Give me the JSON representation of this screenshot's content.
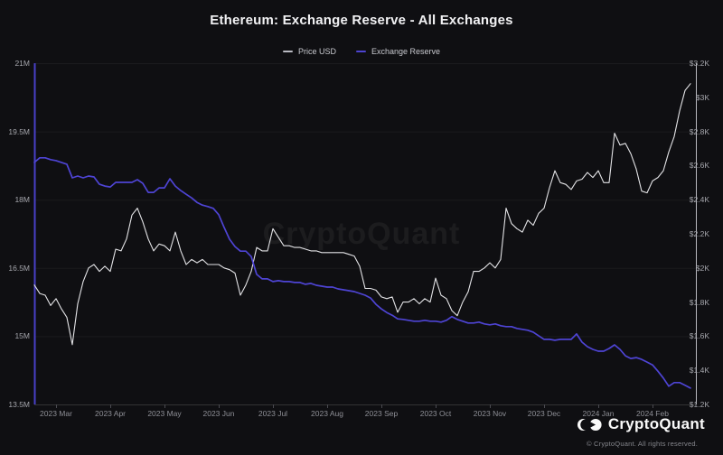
{
  "header": {
    "title": "Ethereum: Exchange Reserve - All Exchanges"
  },
  "legend": [
    {
      "label": "Price USD",
      "color": "#b9bac2"
    },
    {
      "label": "Exchange Reserve",
      "color": "#4d44d0"
    }
  ],
  "watermark": "CryptoQuant",
  "footer": {
    "brand": "CryptoQuant",
    "copyright": "© CryptoQuant. All rights reserved.",
    "logo_icon": "cryptoquant-logo-icon"
  },
  "colors": {
    "background": "#0f0f12",
    "price_line": "#e3e3e6",
    "reserve_line": "#4e44d4",
    "left_axis_line": "#4840c8",
    "right_axis_line": "#b9b9c0",
    "gridline": "rgba(255,255,255,0.05)",
    "tick_mark": "#4a4a50"
  },
  "chart_data": {
    "type": "line",
    "title": "Ethereum: Exchange Reserve - All Exchanges",
    "grid": "horizontal",
    "legend_position": "top",
    "x_start": "2023-02-17",
    "x_end": "2024-02-25",
    "x_sampling": "uniform, ~3-day intervals, 122 points per series",
    "x_axis": {
      "tick_labels": [
        "2023 Mar",
        "2023 Apr",
        "2023 May",
        "2023 Jun",
        "2023 Jul",
        "2023 Aug",
        "2023 Sep",
        "2023 Oct",
        "2023 Nov",
        "2023 Dec",
        "2024 Jan",
        "2024 Feb"
      ]
    },
    "left_axis": {
      "min": 13.5,
      "max": 21,
      "unit": "M ETH",
      "tick_values": [
        21,
        19.5,
        18,
        16.5,
        15,
        13.5
      ],
      "tick_labels": [
        "21M",
        "19.5M",
        "18M",
        "16.5M",
        "15M",
        "13.5M"
      ]
    },
    "right_axis": {
      "min": 1.2,
      "max": 3.2,
      "unit": "USD thousands",
      "tick_values": [
        3.2,
        3.0,
        2.8,
        2.6,
        2.4,
        2.2,
        2.0,
        1.8,
        1.6,
        1.4,
        1.2
      ],
      "tick_labels": [
        "$3.2K",
        "$3K",
        "$2.8K",
        "$2.6K",
        "$2.4K",
        "$2.2K",
        "$2K",
        "$1.8K",
        "$1.6K",
        "$1.4K",
        "$1.2K"
      ]
    },
    "series": [
      {
        "name": "Price USD",
        "axis": "right",
        "unit": "USD (thousands)",
        "color": "#e3e3e6",
        "stroke_width": 1.1,
        "values": [
          1.9,
          1.85,
          1.84,
          1.78,
          1.82,
          1.76,
          1.71,
          1.55,
          1.79,
          1.92,
          2.0,
          2.02,
          1.98,
          2.01,
          1.98,
          2.11,
          2.1,
          2.17,
          2.31,
          2.35,
          2.27,
          2.17,
          2.1,
          2.14,
          2.13,
          2.1,
          2.21,
          2.1,
          2.02,
          2.05,
          2.03,
          2.05,
          2.02,
          2.02,
          2.02,
          2.0,
          1.99,
          1.97,
          1.84,
          1.9,
          1.98,
          2.12,
          2.1,
          2.1,
          2.23,
          2.18,
          2.13,
          2.13,
          2.12,
          2.12,
          2.11,
          2.1,
          2.1,
          2.09,
          2.09,
          2.09,
          2.09,
          2.09,
          2.08,
          2.07,
          2.01,
          1.88,
          1.88,
          1.87,
          1.83,
          1.82,
          1.83,
          1.74,
          1.8,
          1.8,
          1.82,
          1.79,
          1.82,
          1.8,
          1.94,
          1.84,
          1.82,
          1.75,
          1.72,
          1.8,
          1.86,
          1.98,
          1.98,
          2.0,
          2.03,
          2.0,
          2.05,
          2.35,
          2.26,
          2.23,
          2.21,
          2.28,
          2.25,
          2.32,
          2.35,
          2.47,
          2.57,
          2.5,
          2.49,
          2.46,
          2.51,
          2.52,
          2.56,
          2.53,
          2.57,
          2.5,
          2.5,
          2.79,
          2.72,
          2.73,
          2.67,
          2.58,
          2.45,
          2.44,
          2.51,
          2.53,
          2.57,
          2.68,
          2.77,
          2.92,
          3.04,
          3.08
        ]
      },
      {
        "name": "Exchange Reserve",
        "axis": "left",
        "unit": "M ETH",
        "color": "#4e44d4",
        "stroke_width": 1.7,
        "values": [
          18.82,
          18.92,
          18.92,
          18.88,
          18.86,
          18.82,
          18.78,
          18.48,
          18.52,
          18.48,
          18.52,
          18.5,
          18.34,
          18.3,
          18.28,
          18.38,
          18.38,
          18.38,
          18.38,
          18.44,
          18.36,
          18.16,
          18.16,
          18.26,
          18.26,
          18.46,
          18.3,
          18.2,
          18.12,
          18.04,
          17.94,
          17.88,
          17.85,
          17.81,
          17.67,
          17.39,
          17.13,
          16.97,
          16.87,
          16.87,
          16.75,
          16.36,
          16.26,
          16.26,
          16.2,
          16.22,
          16.2,
          16.2,
          16.18,
          16.18,
          16.14,
          16.16,
          16.12,
          16.1,
          16.08,
          16.08,
          16.04,
          16.02,
          16.0,
          15.98,
          15.94,
          15.9,
          15.84,
          15.7,
          15.6,
          15.52,
          15.46,
          15.38,
          15.37,
          15.35,
          15.33,
          15.33,
          15.35,
          15.33,
          15.33,
          15.31,
          15.35,
          15.43,
          15.37,
          15.33,
          15.29,
          15.29,
          15.31,
          15.27,
          15.25,
          15.27,
          15.23,
          15.21,
          15.21,
          15.17,
          15.15,
          15.13,
          15.09,
          15.01,
          14.93,
          14.93,
          14.91,
          14.93,
          14.93,
          14.93,
          15.05,
          14.87,
          14.77,
          14.71,
          14.67,
          14.67,
          14.73,
          14.81,
          14.71,
          14.57,
          14.51,
          14.53,
          14.49,
          14.43,
          14.37,
          14.23,
          14.08,
          13.9,
          13.98,
          13.98,
          13.92,
          13.86
        ]
      }
    ]
  }
}
